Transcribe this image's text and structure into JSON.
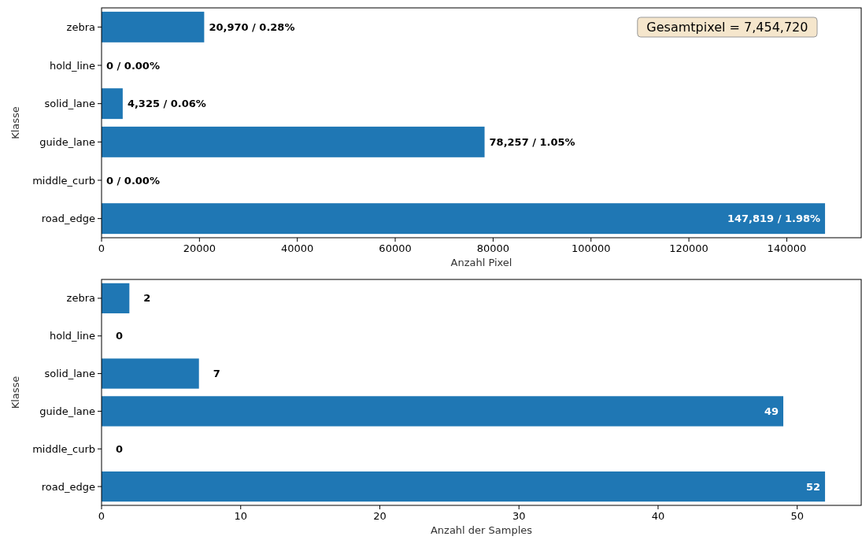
{
  "chart_data": [
    {
      "type": "bar",
      "orientation": "horizontal",
      "categories": [
        "zebra",
        "hold_line",
        "solid_lane",
        "guide_lane",
        "middle_curb",
        "road_edge"
      ],
      "values": [
        20970,
        0,
        4325,
        78257,
        0,
        147819
      ],
      "color": "#1f77b4",
      "value_labels": [
        "20,970 / 0.28%",
        "0 / 0.00%",
        "4,325 / 0.06%",
        "78,257 / 1.05%",
        "0 / 0.00%",
        "147,819 / 1.98%"
      ],
      "xlim": [
        0,
        155210
      ],
      "xticks": [
        0,
        20000,
        40000,
        60000,
        80000,
        100000,
        120000,
        140000
      ],
      "xlabel": "Anzahl Pixel",
      "ylabel": "Klasse",
      "annotations": [
        "Gesamtpixel = 7,454,720"
      ],
      "grid": false
    },
    {
      "type": "bar",
      "orientation": "horizontal",
      "categories": [
        "zebra",
        "hold_line",
        "solid_lane",
        "guide_lane",
        "middle_curb",
        "road_edge"
      ],
      "values": [
        2,
        0,
        7,
        49,
        0,
        52
      ],
      "color": "#1f77b4",
      "data_labels": true,
      "xlim": [
        0,
        54.6
      ],
      "xticks": [
        0,
        10,
        20,
        30,
        40,
        50
      ],
      "xlabel": "Anzahl der Samples",
      "ylabel": "Klasse",
      "grid": false
    }
  ]
}
